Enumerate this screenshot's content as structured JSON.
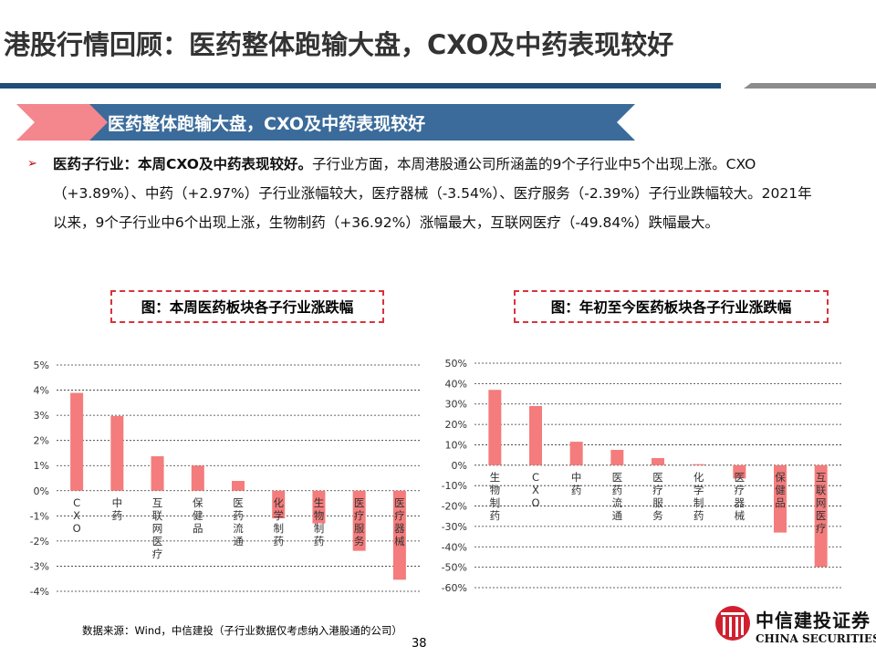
{
  "title": "港股行情回顾：医药整体跑输大盘，CXO及中药表现较好",
  "banner": "医药整体跑输大盘，CXO及中药表现较好",
  "paragraph": {
    "bold": "医药子行业：本周CXO及中药表现较好。",
    "text": "子行业方面，本周港股通公司所涵盖的9个子行业中5个出现上涨。CXO（+3.89%）、中药（+2.97%）子行业涨幅较大，医疗器械（-3.54%）、医疗服务（-2.39%）子行业跌幅较大。2021年以来，9个子行业中6个出现上涨，生物制药（+36.92%）涨幅最大，互联网医疗（-49.84%）跌幅最大。"
  },
  "source": "数据来源：Wind，中信建投（子行业数据仅考虑纳入港股通的公司）",
  "page_number": "38",
  "logo": {
    "cn": "中信建投证券",
    "en": "CHINA SECURITIES"
  },
  "colors": {
    "bar": "#f47c7c",
    "title_bar": "#1f4e79",
    "banner": "#3a6b9a",
    "accent": "#c00000"
  },
  "chart_data": [
    {
      "type": "bar",
      "title": "图：本周医药板块各子行业涨跌幅",
      "categories": [
        "CXO",
        "中药",
        "互联网医疗",
        "保健品",
        "医药流通",
        "化学制药",
        "生物制药",
        "医疗服务",
        "医疗器械"
      ],
      "values": [
        3.89,
        2.97,
        1.37,
        1.0,
        0.39,
        -1.1,
        -1.3,
        -2.39,
        -3.54
      ],
      "ylim": [
        -4,
        5
      ],
      "yticks": [
        5,
        4,
        3,
        2,
        1,
        0,
        -1,
        -2,
        -3,
        -4
      ],
      "tick_format": "%",
      "grid": true
    },
    {
      "type": "bar",
      "title": "图：年初至今医药板块各子行业涨跌幅",
      "categories": [
        "生物制药",
        "CXO",
        "中药",
        "医药流通",
        "医疗服务",
        "化学制药",
        "医疗器械",
        "保健品",
        "互联网医疗"
      ],
      "values": [
        36.92,
        29.0,
        11.5,
        7.5,
        3.5,
        0.5,
        -6.5,
        -33.0,
        -49.84
      ],
      "ylim": [
        -60,
        50
      ],
      "yticks": [
        50,
        40,
        30,
        20,
        10,
        0,
        -10,
        -20,
        -30,
        -40,
        -50,
        -60
      ],
      "tick_format": "%",
      "grid": true
    }
  ]
}
